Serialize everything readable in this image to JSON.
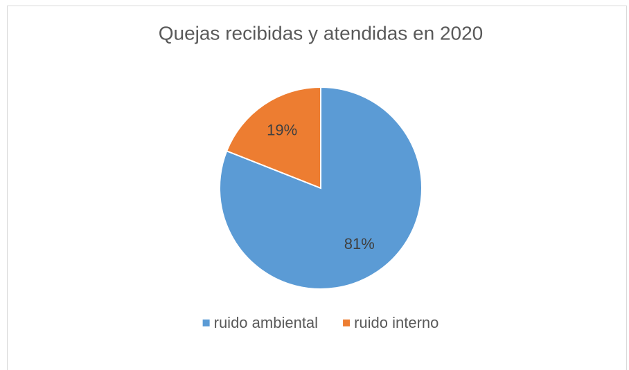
{
  "chart_data": {
    "type": "pie",
    "title": "Quejas recibidas y atendidas en 2020",
    "categories": [
      "ruido ambiental",
      "ruido interno"
    ],
    "values": [
      81,
      19
    ],
    "value_labels": [
      "81%",
      "19%"
    ],
    "colors": [
      "#5b9bd5",
      "#ed7d31"
    ],
    "legend": "bottom"
  }
}
